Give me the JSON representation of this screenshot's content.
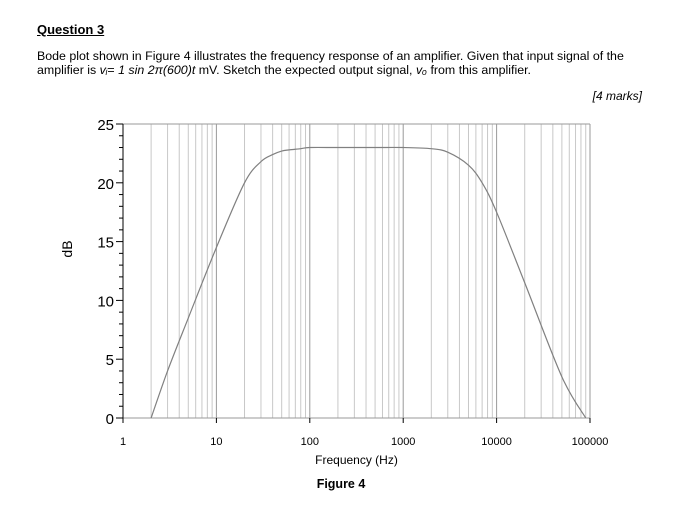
{
  "question": {
    "title": "Question 3",
    "text_part1": "Bode plot shown in Figure 4 illustrates the frequency response of an amplifier. Given that input signal of the amplifier is ",
    "vi_symbol": "vᵢ",
    "eq_sign": "= ",
    "signal_expr": "1 sin 2π(600)t",
    "text_part2": " mV. Sketch the expected output signal, ",
    "vo_symbol": "vₒ",
    "text_part3": " from this amplifier.",
    "marks": "[4 marks]"
  },
  "figure": {
    "caption": "Figure 4"
  },
  "chart_data": {
    "type": "line",
    "xlabel": "Frequency (Hz)",
    "ylabel": "dB",
    "xscale": "log",
    "xlim": [
      1,
      100000
    ],
    "ylim": [
      0,
      25
    ],
    "x_tick_labels": [
      "1",
      "10",
      "100",
      "1000",
      "10000",
      "100000"
    ],
    "y_tick_labels": [
      "0",
      "5",
      "10",
      "15",
      "20",
      "25"
    ],
    "grid": "vertical log gridlines",
    "series": [
      {
        "x": [
          2,
          3,
          5,
          10,
          20,
          30,
          40,
          50,
          60,
          80,
          100,
          200,
          500,
          1000,
          2000,
          3000,
          5000,
          7000,
          10000,
          20000,
          50000,
          90000
        ],
        "y": [
          0,
          4,
          8.5,
          14.5,
          20,
          21.8,
          22.4,
          22.7,
          22.8,
          22.9,
          23,
          23,
          23,
          23,
          22.9,
          22.6,
          21.5,
          20,
          17.5,
          11.5,
          3.5,
          0
        ]
      }
    ],
    "line_color": "#808080"
  }
}
